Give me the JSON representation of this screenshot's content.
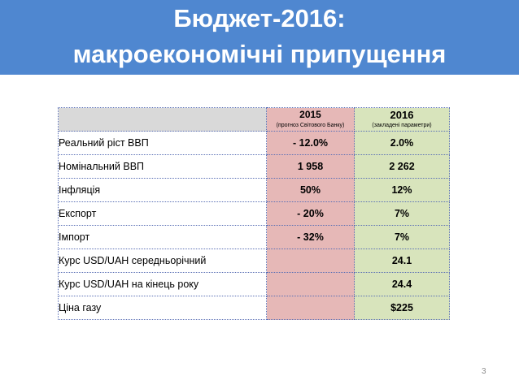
{
  "slide": {
    "title_line1": "Бюджет-2016:",
    "title_line2": "макроекономічні припущення",
    "page_number": "3"
  },
  "colors": {
    "header_background": "#4f87d0",
    "col_2015_background": "#e6b8b7",
    "col_2016_background": "#d8e4bc",
    "header_label_background": "#d9d9d9"
  },
  "table": {
    "header": {
      "label": "",
      "col_2015_year": "2015",
      "col_2015_note": "(прогноз Світового Банку)",
      "col_2016_year": "2016",
      "col_2016_note": "(закладені параметри)"
    },
    "rows": [
      {
        "label": "Реальний ріст ВВП",
        "v2015": "- 12.0%",
        "v2016": "2.0%"
      },
      {
        "label": "Номінальний ВВП",
        "v2015": "1 958",
        "v2016": "2 262"
      },
      {
        "label": "Інфляція",
        "v2015": "50%",
        "v2016": "12%"
      },
      {
        "label": "Експорт",
        "v2015": "- 20%",
        "v2016": "7%"
      },
      {
        "label": "Імпорт",
        "v2015": "- 32%",
        "v2016": "7%"
      },
      {
        "label": "Курс USD/UAH середньорічний",
        "v2015": "",
        "v2016": "24.1"
      },
      {
        "label": "Курс USD/UAH на кінець року",
        "v2015": "",
        "v2016": "24.4"
      },
      {
        "label": "Ціна газу",
        "v2015": "",
        "v2016": "$225"
      }
    ]
  }
}
